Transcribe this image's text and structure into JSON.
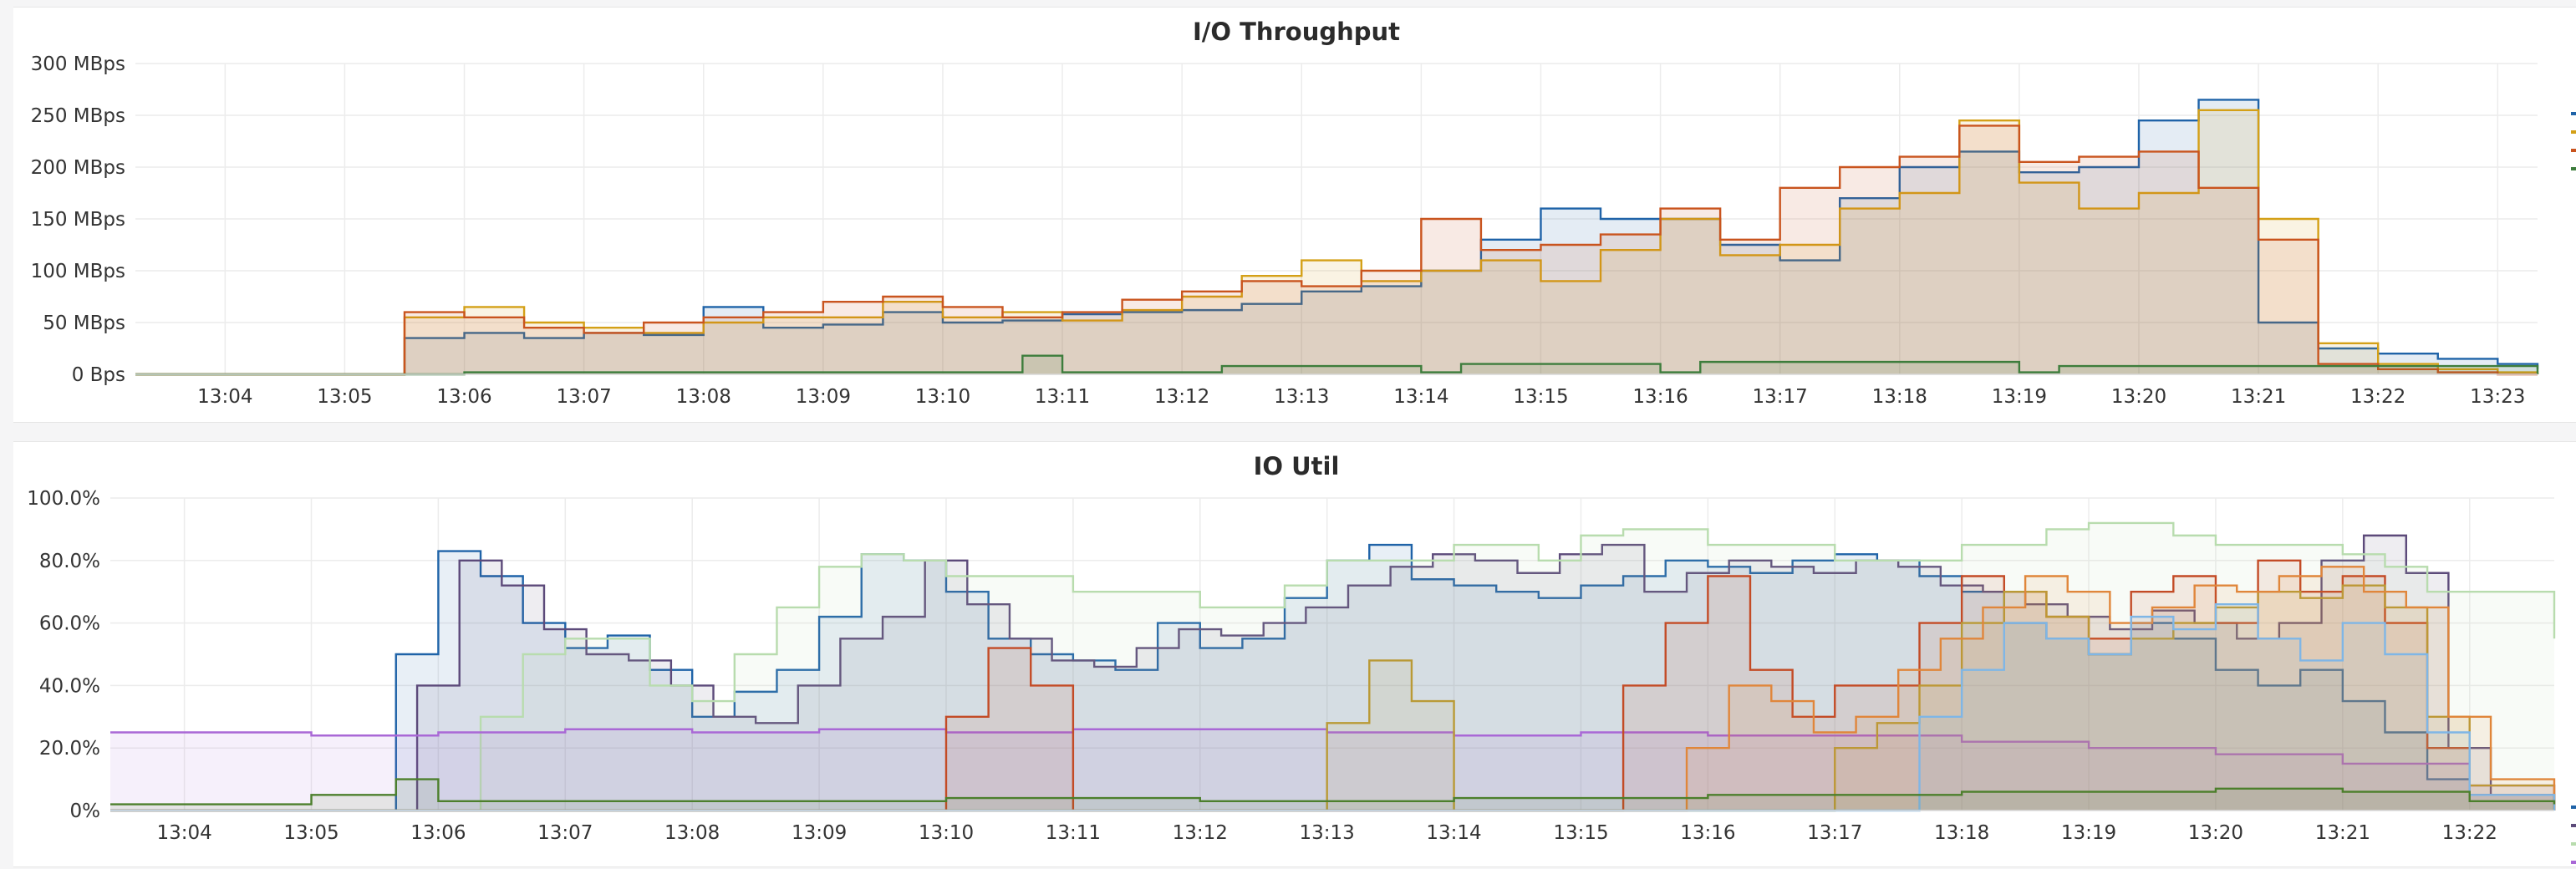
{
  "chart_data": [
    {
      "type": "area",
      "title": "I/O Throughput",
      "ylabel": "",
      "xlabel": "",
      "y_unit": "MBps",
      "ylim": [
        0,
        300
      ],
      "xlim": [
        "13:03:15",
        "13:23:20"
      ],
      "y_ticks": [
        {
          "value": 300,
          "label": "300 MBps"
        },
        {
          "value": 250,
          "label": "250 MBps"
        },
        {
          "value": 200,
          "label": "200 MBps"
        },
        {
          "value": 150,
          "label": "150 MBps"
        },
        {
          "value": 100,
          "label": "100 MBps"
        },
        {
          "value": 50,
          "label": "50 MBps"
        },
        {
          "value": 0,
          "label": "0 Bps"
        }
      ],
      "x_ticks": [
        "13:04",
        "13:05",
        "13:06",
        "13:07",
        "13:08",
        "13:09",
        "13:10",
        "13:11",
        "13:12",
        "13:13",
        "13:14",
        "13:15",
        "13:16",
        "13:17",
        "13:18",
        "13:19",
        "13:20",
        "13:21",
        "13:22",
        "13:23"
      ],
      "grid": true,
      "legend_position": "right",
      "series": [
        {
          "color": "#1f63a8",
          "x": [
            "13:03:15",
            "13:05:30",
            "13:06:00",
            "13:06:30",
            "13:07:00",
            "13:07:30",
            "13:08:00",
            "13:08:30",
            "13:09:00",
            "13:09:30",
            "13:10:00",
            "13:10:30",
            "13:11:00",
            "13:11:30",
            "13:12:00",
            "13:12:30",
            "13:13:00",
            "13:13:30",
            "13:14:00",
            "13:14:30",
            "13:15:00",
            "13:15:30",
            "13:16:00",
            "13:16:30",
            "13:17:00",
            "13:17:30",
            "13:18:00",
            "13:18:30",
            "13:19:00",
            "13:19:30",
            "13:20:00",
            "13:20:30",
            "13:21:00",
            "13:21:30",
            "13:22:00",
            "13:22:30",
            "13:23:00",
            "13:23:20"
          ],
          "values": [
            0,
            35,
            40,
            35,
            40,
            38,
            65,
            45,
            48,
            60,
            50,
            52,
            58,
            60,
            62,
            68,
            80,
            85,
            100,
            130,
            160,
            150,
            150,
            125,
            110,
            170,
            200,
            215,
            195,
            200,
            245,
            265,
            50,
            25,
            20,
            15,
            10,
            5
          ]
        },
        {
          "color": "#d4a017",
          "x": [
            "13:03:15",
            "13:05:30",
            "13:06:00",
            "13:06:30",
            "13:07:00",
            "13:07:30",
            "13:08:00",
            "13:08:30",
            "13:09:00",
            "13:09:30",
            "13:10:00",
            "13:10:30",
            "13:11:00",
            "13:11:30",
            "13:12:00",
            "13:12:30",
            "13:13:00",
            "13:13:30",
            "13:14:00",
            "13:14:30",
            "13:15:00",
            "13:15:30",
            "13:16:00",
            "13:16:30",
            "13:17:00",
            "13:17:30",
            "13:18:00",
            "13:18:30",
            "13:19:00",
            "13:19:30",
            "13:20:00",
            "13:20:30",
            "13:21:00",
            "13:21:30",
            "13:22:00",
            "13:22:30",
            "13:23:00",
            "13:23:20"
          ],
          "values": [
            0,
            55,
            65,
            50,
            45,
            40,
            50,
            55,
            55,
            70,
            55,
            60,
            52,
            62,
            75,
            95,
            110,
            90,
            100,
            110,
            90,
            120,
            150,
            115,
            125,
            160,
            175,
            245,
            185,
            160,
            175,
            255,
            150,
            30,
            10,
            5,
            2,
            0
          ]
        },
        {
          "color": "#c9541e",
          "x": [
            "13:03:15",
            "13:05:30",
            "13:06:00",
            "13:06:30",
            "13:07:00",
            "13:07:30",
            "13:08:00",
            "13:08:30",
            "13:09:00",
            "13:09:30",
            "13:10:00",
            "13:10:30",
            "13:11:00",
            "13:11:30",
            "13:12:00",
            "13:12:30",
            "13:13:00",
            "13:13:30",
            "13:14:00",
            "13:14:30",
            "13:15:00",
            "13:15:30",
            "13:16:00",
            "13:16:30",
            "13:17:00",
            "13:17:30",
            "13:18:00",
            "13:18:30",
            "13:19:00",
            "13:19:30",
            "13:20:00",
            "13:20:30",
            "13:21:00",
            "13:21:30",
            "13:22:00",
            "13:22:30",
            "13:23:00",
            "13:23:20"
          ],
          "values": [
            0,
            60,
            55,
            45,
            40,
            50,
            55,
            60,
            70,
            75,
            65,
            55,
            60,
            72,
            80,
            90,
            85,
            100,
            150,
            120,
            125,
            135,
            160,
            130,
            180,
            200,
            210,
            240,
            205,
            210,
            215,
            180,
            130,
            10,
            5,
            2,
            0,
            0
          ]
        },
        {
          "color": "#3d7d3c",
          "x": [
            "13:03:15",
            "13:06:00",
            "13:10:20",
            "13:10:40",
            "13:11:00",
            "13:12:00",
            "13:12:20",
            "13:14:00",
            "13:14:20",
            "13:16:00",
            "13:16:20",
            "13:19:00",
            "13:19:20",
            "13:23:20"
          ],
          "values": [
            0,
            2,
            2,
            18,
            2,
            2,
            8,
            2,
            10,
            2,
            12,
            2,
            8,
            0
          ]
        }
      ]
    },
    {
      "type": "area",
      "title": "IO Util",
      "ylabel": "",
      "xlabel": "",
      "y_unit": "%",
      "ylim": [
        0,
        100
      ],
      "xlim": [
        "13:03:25",
        "13:22:40"
      ],
      "y_ticks": [
        {
          "value": 100,
          "label": "100.0%"
        },
        {
          "value": 80,
          "label": "80.0%"
        },
        {
          "value": 60,
          "label": "60.0%"
        },
        {
          "value": 40,
          "label": "40.0%"
        },
        {
          "value": 20,
          "label": "20.0%"
        },
        {
          "value": 0,
          "label": "0%"
        }
      ],
      "x_ticks": [
        "13:04",
        "13:05",
        "13:06",
        "13:07",
        "13:08",
        "13:09",
        "13:10",
        "13:11",
        "13:12",
        "13:13",
        "13:14",
        "13:15",
        "13:16",
        "13:17",
        "13:18",
        "13:19",
        "13:20",
        "13:21",
        "13:22"
      ],
      "grid": true,
      "legend_position": "right",
      "series": [
        {
          "color": "#1f63a8",
          "x": [
            "13:03:25",
            "13:05:40",
            "13:06:00",
            "13:06:20",
            "13:06:40",
            "13:07:00",
            "13:07:20",
            "13:07:40",
            "13:08:00",
            "13:08:20",
            "13:08:40",
            "13:09:00",
            "13:09:20",
            "13:09:40",
            "13:10:00",
            "13:10:20",
            "13:10:40",
            "13:11:00",
            "13:11:20",
            "13:11:40",
            "13:12:00",
            "13:12:20",
            "13:12:40",
            "13:13:00",
            "13:13:20",
            "13:13:40",
            "13:14:00",
            "13:14:20",
            "13:14:40",
            "13:15:00",
            "13:15:20",
            "13:15:40",
            "13:16:00",
            "13:16:20",
            "13:16:40",
            "13:17:00",
            "13:17:20",
            "13:17:40",
            "13:18:00",
            "13:18:20",
            "13:18:40",
            "13:19:00",
            "13:19:20",
            "13:19:40",
            "13:20:00",
            "13:20:20",
            "13:20:40",
            "13:21:00",
            "13:21:20",
            "13:21:40",
            "13:22:00",
            "13:22:40"
          ],
          "values": [
            0,
            50,
            83,
            75,
            60,
            52,
            56,
            45,
            30,
            38,
            45,
            62,
            82,
            80,
            70,
            55,
            50,
            48,
            45,
            60,
            52,
            55,
            68,
            80,
            85,
            74,
            72,
            70,
            68,
            72,
            75,
            80,
            78,
            76,
            80,
            82,
            80,
            75,
            70,
            60,
            55,
            50,
            60,
            55,
            45,
            40,
            45,
            35,
            25,
            10,
            5,
            0
          ]
        },
        {
          "color": "#5c4a7a",
          "x": [
            "13:03:25",
            "13:05:50",
            "13:06:10",
            "13:06:30",
            "13:06:50",
            "13:07:10",
            "13:07:30",
            "13:07:50",
            "13:08:10",
            "13:08:30",
            "13:08:50",
            "13:09:10",
            "13:09:30",
            "13:09:50",
            "13:10:10",
            "13:10:30",
            "13:10:50",
            "13:11:10",
            "13:11:30",
            "13:11:50",
            "13:12:10",
            "13:12:30",
            "13:12:50",
            "13:13:10",
            "13:13:30",
            "13:13:50",
            "13:14:10",
            "13:14:30",
            "13:14:50",
            "13:15:10",
            "13:15:30",
            "13:15:50",
            "13:16:10",
            "13:16:30",
            "13:16:50",
            "13:17:10",
            "13:17:30",
            "13:17:50",
            "13:18:10",
            "13:18:30",
            "13:18:50",
            "13:19:10",
            "13:19:30",
            "13:19:50",
            "13:20:10",
            "13:20:30",
            "13:20:50",
            "13:21:10",
            "13:21:30",
            "13:21:50",
            "13:22:10",
            "13:22:40"
          ],
          "values": [
            0,
            40,
            80,
            72,
            58,
            50,
            48,
            40,
            30,
            28,
            40,
            55,
            62,
            80,
            66,
            55,
            48,
            46,
            52,
            58,
            56,
            60,
            65,
            72,
            78,
            82,
            80,
            76,
            82,
            85,
            70,
            76,
            80,
            78,
            76,
            80,
            78,
            72,
            70,
            66,
            62,
            58,
            64,
            60,
            55,
            60,
            80,
            88,
            76,
            20,
            5,
            0
          ]
        },
        {
          "color": "#b8dcae",
          "x": [
            "13:03:25",
            "13:06:20",
            "13:06:40",
            "13:07:00",
            "13:07:40",
            "13:08:00",
            "13:08:20",
            "13:08:40",
            "13:09:00",
            "13:09:20",
            "13:09:40",
            "13:10:00",
            "13:11:00",
            "13:12:00",
            "13:12:40",
            "13:13:00",
            "13:14:00",
            "13:14:40",
            "13:15:00",
            "13:15:20",
            "13:16:00",
            "13:17:00",
            "13:18:00",
            "13:18:40",
            "13:19:00",
            "13:19:40",
            "13:20:00",
            "13:21:00",
            "13:21:20",
            "13:21:40",
            "13:22:40"
          ],
          "values": [
            0,
            30,
            50,
            55,
            40,
            35,
            50,
            65,
            78,
            82,
            80,
            75,
            70,
            65,
            72,
            80,
            85,
            80,
            88,
            90,
            85,
            80,
            85,
            90,
            92,
            88,
            85,
            82,
            78,
            70,
            55
          ]
        },
        {
          "color": "#a968d6",
          "x": [
            "13:03:25",
            "13:04:00",
            "13:05:00",
            "13:06:00",
            "13:07:00",
            "13:08:00",
            "13:09:00",
            "13:10:00",
            "13:11:00",
            "13:12:00",
            "13:13:00",
            "13:14:00",
            "13:15:00",
            "13:16:00",
            "13:17:00",
            "13:18:00",
            "13:19:00",
            "13:20:00",
            "13:21:00",
            "13:22:00",
            "13:22:40"
          ],
          "values": [
            25,
            25,
            24,
            25,
            26,
            25,
            26,
            25,
            26,
            26,
            25,
            24,
            25,
            24,
            24,
            22,
            20,
            18,
            15,
            8,
            5
          ]
        },
        {
          "color": "#c34b26",
          "x": [
            "13:03:25",
            "13:09:50",
            "13:10:00",
            "13:10:20",
            "13:10:40",
            "13:11:00",
            "13:15:00",
            "13:15:20",
            "13:15:40",
            "13:16:00",
            "13:16:20",
            "13:16:40",
            "13:17:00",
            "13:17:40",
            "13:18:00",
            "13:18:20",
            "13:18:40",
            "13:19:00",
            "13:19:20",
            "13:19:40",
            "13:20:00",
            "13:20:20",
            "13:20:40",
            "13:21:00",
            "13:21:20",
            "13:21:40",
            "13:22:00",
            "13:22:40"
          ],
          "values": [
            0,
            0,
            30,
            52,
            40,
            0,
            0,
            40,
            60,
            75,
            45,
            30,
            40,
            60,
            75,
            70,
            62,
            55,
            70,
            75,
            60,
            80,
            70,
            75,
            60,
            20,
            5,
            0
          ]
        },
        {
          "color": "#b99a36",
          "x": [
            "13:03:25",
            "13:12:50",
            "13:13:00",
            "13:13:20",
            "13:13:40",
            "13:14:00",
            "13:16:40",
            "13:17:00",
            "13:17:20",
            "13:17:40",
            "13:18:00",
            "13:18:20",
            "13:18:40",
            "13:19:00",
            "13:19:20",
            "13:19:40",
            "13:20:00",
            "13:20:20",
            "13:20:40",
            "13:21:00",
            "13:21:20",
            "13:21:40",
            "13:22:00",
            "13:22:40"
          ],
          "values": [
            0,
            0,
            28,
            48,
            35,
            0,
            0,
            20,
            28,
            40,
            60,
            70,
            62,
            50,
            55,
            60,
            65,
            70,
            68,
            72,
            65,
            30,
            8,
            0
          ]
        },
        {
          "color": "#e0863b",
          "x": [
            "13:03:25",
            "13:15:30",
            "13:15:50",
            "13:16:10",
            "13:16:30",
            "13:16:50",
            "13:17:10",
            "13:17:30",
            "13:17:50",
            "13:18:10",
            "13:18:30",
            "13:18:50",
            "13:19:10",
            "13:19:30",
            "13:19:50",
            "13:20:10",
            "13:20:30",
            "13:20:50",
            "13:21:10",
            "13:21:30",
            "13:21:50",
            "13:22:10",
            "13:22:40"
          ],
          "values": [
            0,
            0,
            20,
            40,
            35,
            25,
            30,
            45,
            55,
            65,
            75,
            70,
            60,
            65,
            72,
            70,
            75,
            78,
            70,
            65,
            30,
            10,
            0
          ]
        },
        {
          "color": "#7fb6e6",
          "x": [
            "13:03:25",
            "13:17:20",
            "13:17:40",
            "13:18:00",
            "13:18:20",
            "13:18:40",
            "13:19:00",
            "13:19:20",
            "13:19:40",
            "13:20:00",
            "13:20:20",
            "13:20:40",
            "13:21:00",
            "13:21:20",
            "13:21:40",
            "13:22:00",
            "13:22:40"
          ],
          "values": [
            0,
            0,
            30,
            45,
            60,
            55,
            50,
            62,
            58,
            66,
            55,
            48,
            60,
            50,
            25,
            5,
            0
          ]
        },
        {
          "color": "#4c7f2c",
          "x": [
            "13:03:25",
            "13:05:00",
            "13:05:40",
            "13:06:00",
            "13:08:00",
            "13:10:00",
            "13:12:00",
            "13:14:00",
            "13:16:00",
            "13:18:00",
            "13:20:00",
            "13:21:00",
            "13:22:00",
            "13:22:40"
          ],
          "values": [
            2,
            5,
            10,
            3,
            3,
            4,
            3,
            4,
            5,
            6,
            7,
            6,
            3,
            2
          ]
        }
      ]
    }
  ]
}
